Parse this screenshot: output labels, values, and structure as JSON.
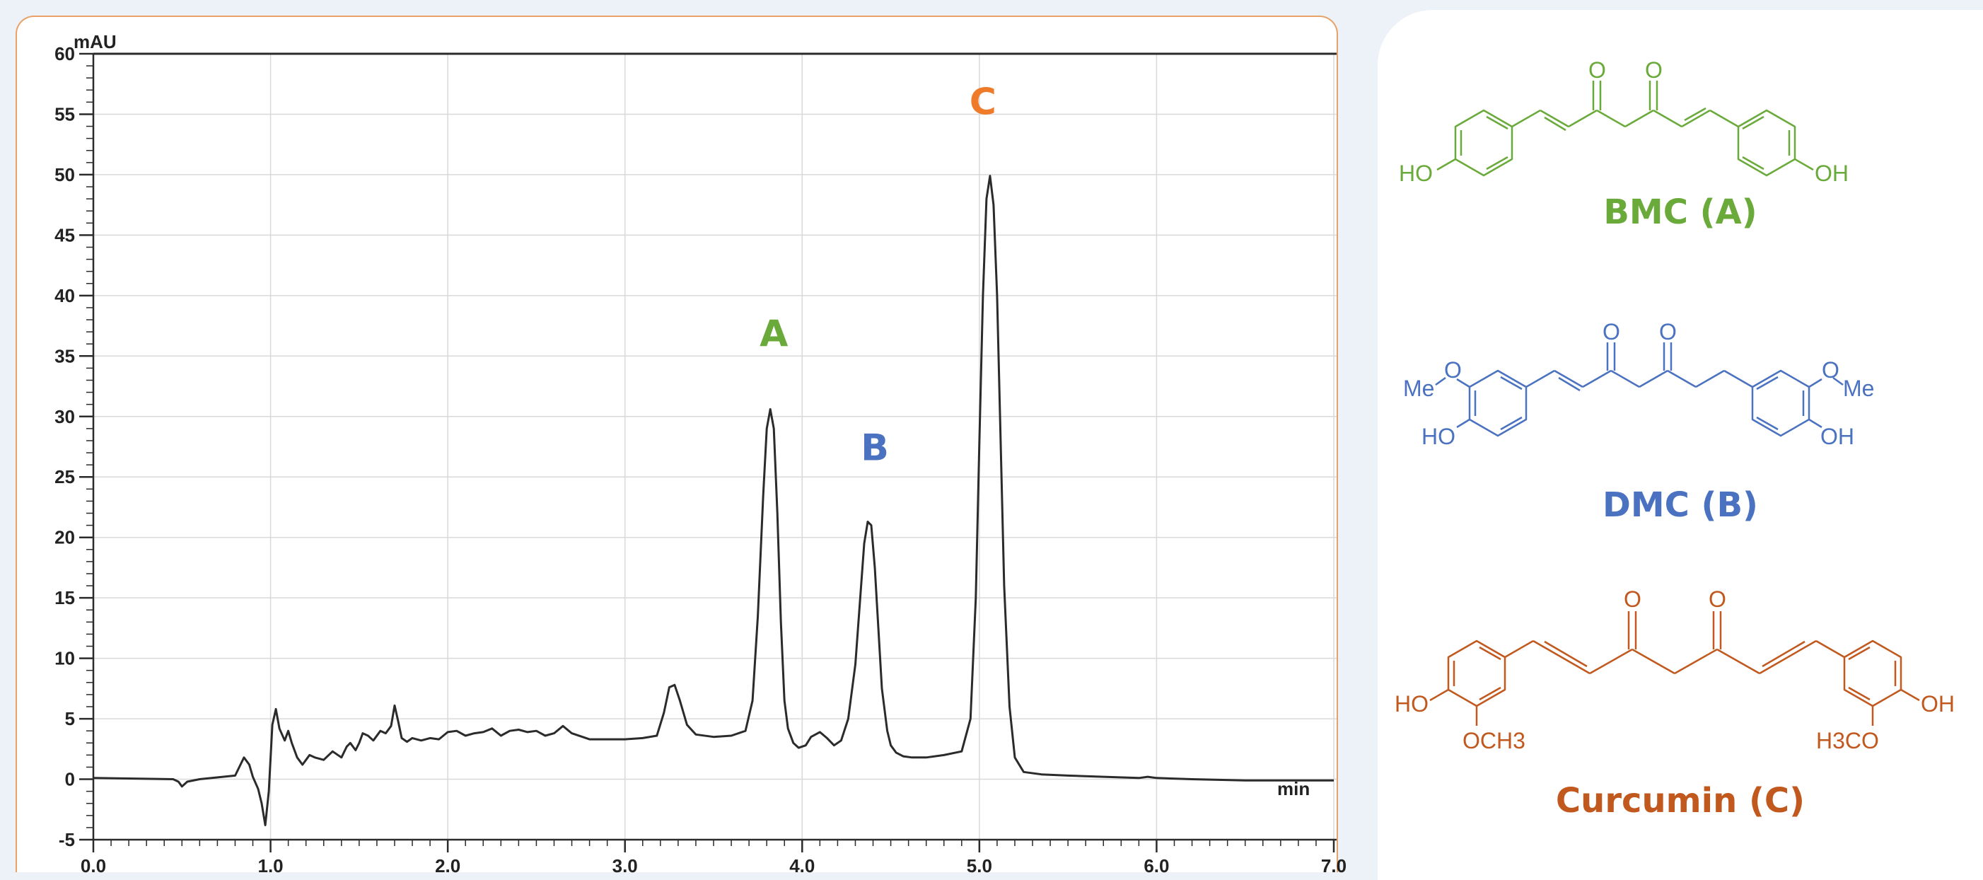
{
  "chart_data": {
    "type": "line",
    "xlabel": "min",
    "ylabel": "mAU",
    "xlim": [
      0.0,
      7.0
    ],
    "ylim": [
      -5,
      60
    ],
    "x_ticks": [
      "0.0",
      "1.0",
      "2.0",
      "3.0",
      "4.0",
      "5.0",
      "6.0",
      "7.0"
    ],
    "y_ticks": [
      "60",
      "55",
      "50",
      "45",
      "40",
      "35",
      "30",
      "25",
      "20",
      "15",
      "10",
      "5",
      "0",
      "-5"
    ],
    "grid": true,
    "series": [
      {
        "color": "#2b2b2b",
        "x": [
          0.0,
          0.45,
          0.48,
          0.5,
          0.53,
          0.6,
          0.8,
          0.83,
          0.85,
          0.88,
          0.9,
          0.93,
          0.95,
          0.97,
          0.99,
          1.01,
          1.03,
          1.05,
          1.08,
          1.1,
          1.12,
          1.15,
          1.18,
          1.2,
          1.22,
          1.25,
          1.3,
          1.35,
          1.4,
          1.43,
          1.45,
          1.48,
          1.5,
          1.52,
          1.55,
          1.58,
          1.62,
          1.65,
          1.68,
          1.7,
          1.72,
          1.74,
          1.77,
          1.8,
          1.85,
          1.9,
          1.95,
          2.0,
          2.05,
          2.1,
          2.15,
          2.2,
          2.25,
          2.3,
          2.35,
          2.4,
          2.45,
          2.5,
          2.55,
          2.6,
          2.65,
          2.7,
          2.8,
          3.0,
          3.1,
          3.18,
          3.22,
          3.25,
          3.28,
          3.31,
          3.35,
          3.4,
          3.5,
          3.6,
          3.68,
          3.72,
          3.75,
          3.78,
          3.8,
          3.82,
          3.84,
          3.86,
          3.88,
          3.9,
          3.92,
          3.95,
          3.98,
          4.02,
          4.05,
          4.1,
          4.14,
          4.18,
          4.22,
          4.26,
          4.3,
          4.33,
          4.35,
          4.37,
          4.39,
          4.41,
          4.43,
          4.45,
          4.48,
          4.5,
          4.53,
          4.57,
          4.62,
          4.7,
          4.8,
          4.9,
          4.95,
          4.98,
          5.0,
          5.02,
          5.04,
          5.06,
          5.08,
          5.1,
          5.12,
          5.14,
          5.17,
          5.2,
          5.25,
          5.35,
          5.5,
          5.7,
          5.9,
          5.95,
          6.0,
          6.2,
          6.5,
          7.0
        ],
        "y": [
          0.1,
          0.0,
          -0.2,
          -0.6,
          -0.2,
          0.0,
          0.3,
          1.2,
          1.8,
          1.2,
          0.2,
          -0.8,
          -2.0,
          -3.8,
          -1.0,
          4.5,
          5.8,
          4.2,
          3.2,
          4.0,
          3.0,
          1.8,
          1.2,
          1.6,
          2.0,
          1.8,
          1.6,
          2.3,
          1.8,
          2.7,
          3.0,
          2.4,
          3.0,
          3.8,
          3.6,
          3.2,
          4.0,
          3.8,
          4.4,
          6.1,
          4.8,
          3.4,
          3.1,
          3.4,
          3.2,
          3.4,
          3.3,
          3.9,
          4.0,
          3.6,
          3.8,
          3.9,
          4.2,
          3.6,
          4.0,
          4.1,
          3.9,
          4.0,
          3.6,
          3.8,
          4.4,
          3.8,
          3.3,
          3.3,
          3.4,
          3.6,
          5.5,
          7.6,
          7.8,
          6.5,
          4.5,
          3.7,
          3.5,
          3.6,
          4.0,
          6.5,
          13.5,
          23.5,
          29.0,
          30.6,
          29.0,
          22.0,
          13.0,
          6.5,
          4.2,
          3.0,
          2.6,
          2.8,
          3.5,
          3.9,
          3.4,
          2.8,
          3.2,
          5.0,
          9.5,
          15.5,
          19.5,
          21.3,
          21.0,
          17.5,
          12.5,
          7.5,
          4.0,
          2.8,
          2.2,
          1.9,
          1.8,
          1.8,
          2.0,
          2.3,
          5.0,
          15.0,
          28.0,
          40.0,
          48.0,
          49.9,
          47.5,
          40.0,
          28.0,
          16.0,
          6.0,
          1.8,
          0.6,
          0.4,
          0.3,
          0.2,
          0.1,
          0.2,
          0.1,
          0.0,
          -0.1,
          -0.1
        ]
      }
    ],
    "annotations": [
      {
        "text": "A",
        "x": 3.84,
        "y": 35.8,
        "color": "#6aaa3a"
      },
      {
        "text": "B",
        "x": 4.41,
        "y": 26.4,
        "color": "#4a72c0"
      },
      {
        "text": "C",
        "x": 5.02,
        "y": 55.0,
        "color": "#ef7b2a"
      }
    ]
  },
  "structures": [
    {
      "caption": "BMC (A)",
      "color": "#6aaa3a",
      "atoms": {
        "o1": "O",
        "o2": "O",
        "ho": "HO",
        "oh": "OH"
      }
    },
    {
      "caption": "DMC (B)",
      "color": "#4a72c0",
      "atoms": {
        "o1": "O",
        "o2": "O",
        "me1": "Me",
        "ol": "O",
        "or": "O",
        "me2": "Me",
        "ho": "HO",
        "oh": "OH"
      }
    },
    {
      "caption": "Curcumin (C)",
      "color": "#c1581e",
      "atoms": {
        "o1": "O",
        "o2": "O",
        "ho": "HO",
        "oh": "OH",
        "och3": "OCH3",
        "h3co": "H3CO"
      }
    }
  ]
}
